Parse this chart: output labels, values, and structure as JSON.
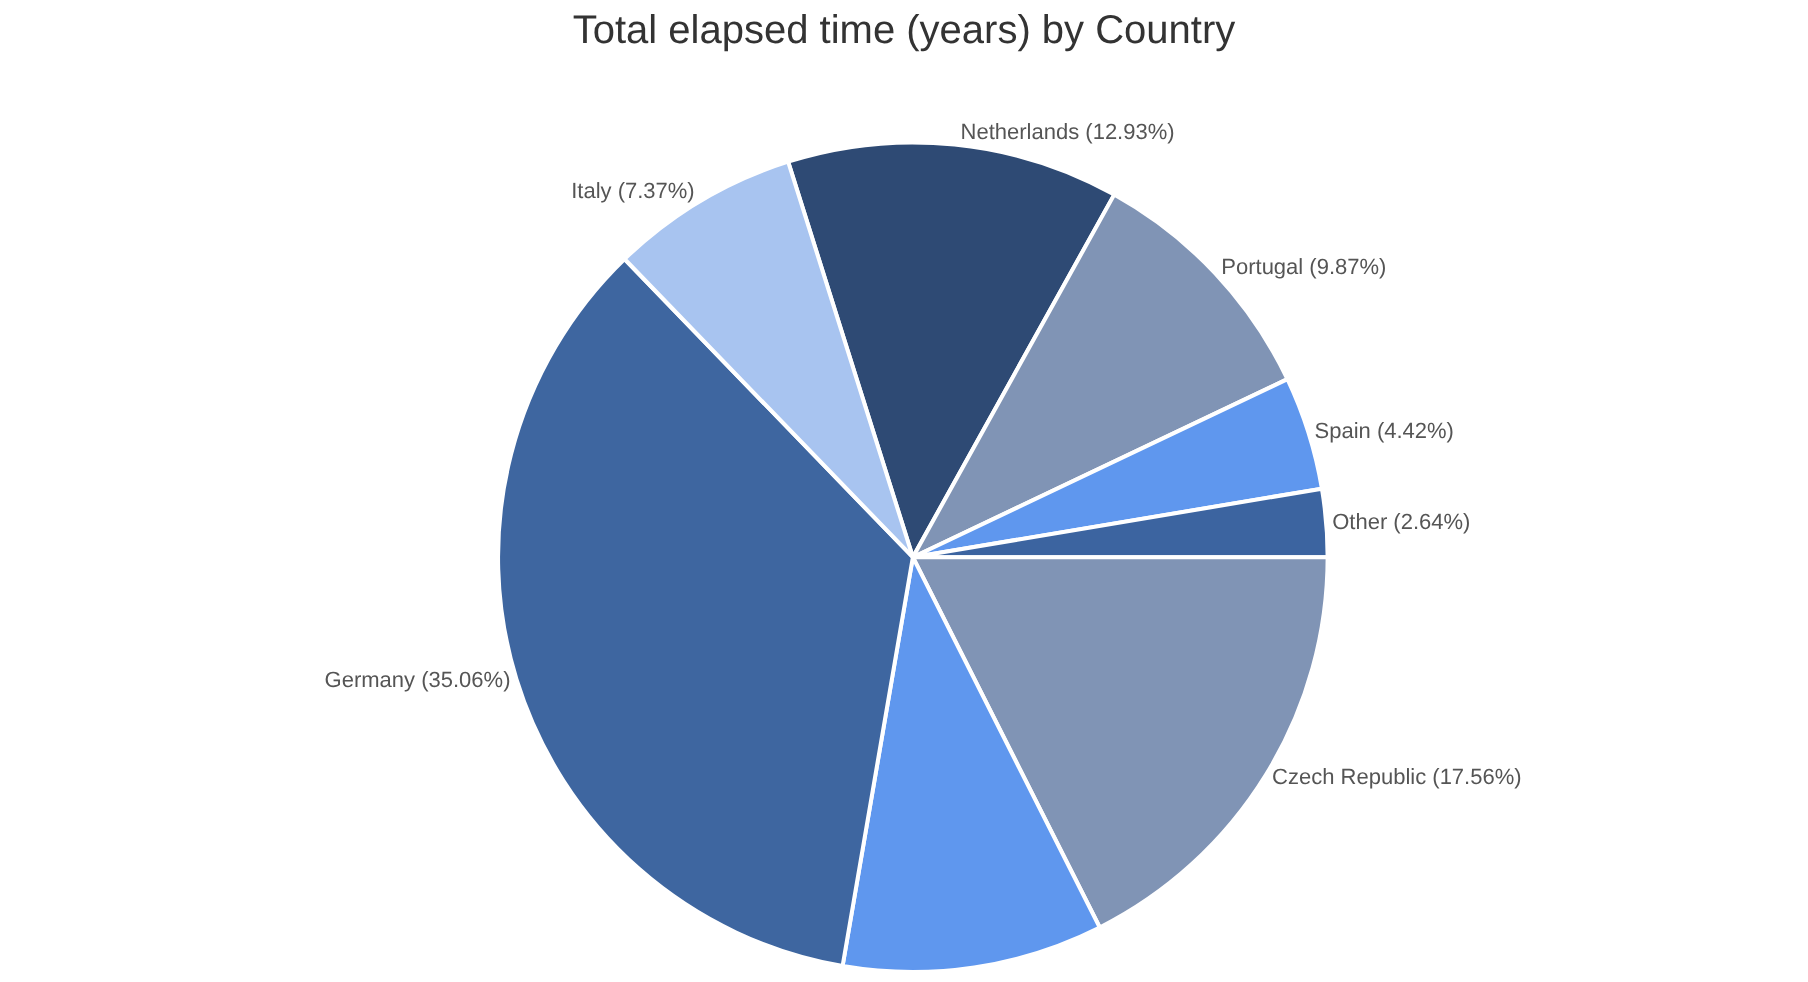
{
  "chart_data": {
    "type": "pie",
    "title": "Total elapsed time (years) by Country",
    "categories": [
      "Netherlands (12.93%)",
      "Portugal (9.87%)",
      "Spain (4.42%)",
      "Other (2.64%)",
      "Czech Republic (17.56%)",
      null,
      "Germany (35.06%)",
      "Italy (7.37%)"
    ],
    "values": [
      12.93,
      9.87,
      4.42,
      2.64,
      17.56,
      10.15,
      35.06,
      7.37
    ],
    "colors": [
      "#2e4a74",
      "#8094b5",
      "#5f97ee",
      "#3c64a0",
      "#8094b5",
      "#5f97ee",
      "#3e66a0",
      "#a8c4f0"
    ]
  }
}
